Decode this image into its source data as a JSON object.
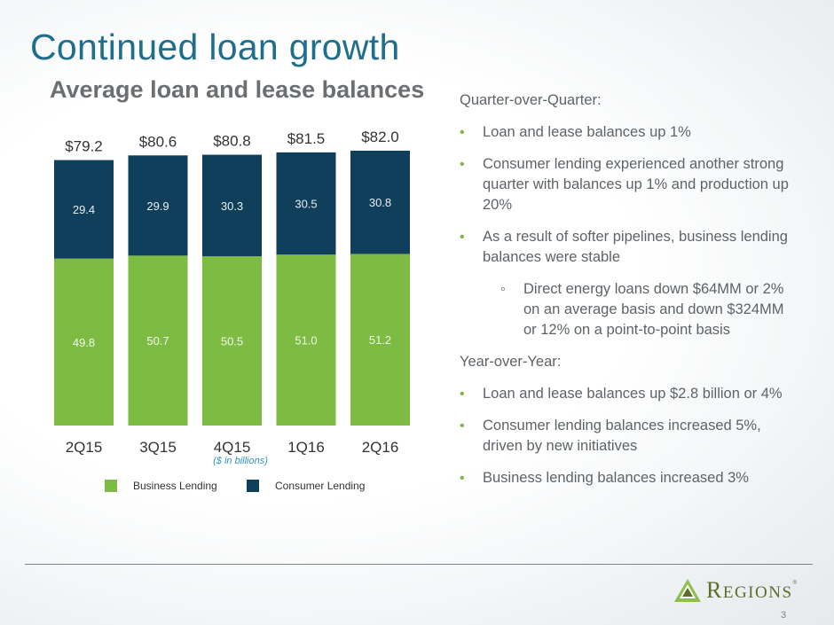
{
  "title": "Continued loan growth",
  "subtitle": "Average loan and lease balances",
  "axis_note": "($ in billions)",
  "colors": {
    "business": "#7dbb42",
    "consumer": "#0f3f5a",
    "title": "#1f6e8c"
  },
  "chart_data": {
    "type": "bar",
    "stacked": true,
    "categories": [
      "2Q15",
      "3Q15",
      "4Q15",
      "1Q16",
      "2Q16"
    ],
    "series": [
      {
        "name": "Business Lending",
        "values": [
          49.8,
          50.7,
          50.5,
          51.0,
          51.2
        ],
        "value_labels": [
          "49.8",
          "50.7",
          "50.5",
          "51.0",
          "51.2"
        ]
      },
      {
        "name": "Consumer Lending",
        "values": [
          29.4,
          29.9,
          30.3,
          30.5,
          30.8
        ],
        "value_labels": [
          "29.4",
          "29.9",
          "30.3",
          "30.5",
          "30.8"
        ]
      }
    ],
    "total_labels": [
      "$79.2",
      "$80.6",
      "$80.8",
      "$81.5",
      "$82.0"
    ],
    "totals": [
      79.2,
      80.6,
      80.8,
      81.5,
      82.0
    ],
    "ylim": [
      0,
      82.0
    ],
    "legend_position": "bottom",
    "grid": false
  },
  "commentary": {
    "qoq_header": "Quarter-over-Quarter:",
    "qoq_bullets": [
      "Loan and lease balances up 1%",
      "Consumer lending experienced another strong quarter with balances up 1% and production up 20%",
      "As a result of softer pipelines, business lending balances were stable"
    ],
    "qoq_sub": "Direct energy loans down $64MM or 2% on an average basis and down $324MM or 12% on a point-to-point basis",
    "yoy_header": "Year-over-Year:",
    "yoy_bullets": [
      "Loan and lease balances up $2.8 billion or 4%",
      "Consumer lending balances increased 5%, driven by new initiatives",
      "Business lending balances increased 3%"
    ]
  },
  "logo": {
    "initial": "R",
    "rest": "EGIONS",
    "reg": "®"
  },
  "page_number": "3"
}
